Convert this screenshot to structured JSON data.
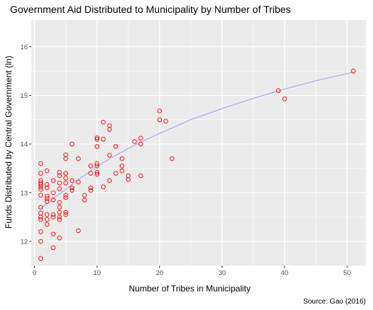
{
  "chart_data": {
    "type": "scatter",
    "title": "Government Aid Distributed to Municipality by Number of Tribes",
    "xlabel": "Number of Tribes in Municipality",
    "ylabel": "Funds Distributed by Central Government (ln)",
    "caption": "Source: Gao (2016)",
    "xlim": [
      -0.5,
      53
    ],
    "ylim": [
      11.5,
      16.55
    ],
    "x_ticks": [
      0,
      10,
      20,
      30,
      40,
      50
    ],
    "y_ticks": [
      12,
      13,
      14,
      15,
      16
    ],
    "x_tick_labels": [
      "0",
      "10",
      "20",
      "30",
      "40",
      "50"
    ],
    "y_tick_labels": [
      "12",
      "13",
      "14",
      "15",
      "16"
    ],
    "grid": true,
    "background": "#ebebeb",
    "point_color": "#ff0000",
    "fit_color": "#aaaaff",
    "points": [
      [
        1,
        11.65
      ],
      [
        1,
        12.0
      ],
      [
        1,
        12.2
      ],
      [
        1,
        12.45
      ],
      [
        1,
        12.5
      ],
      [
        1,
        12.58
      ],
      [
        1,
        12.7
      ],
      [
        1,
        12.95
      ],
      [
        1,
        13.07
      ],
      [
        1,
        13.12
      ],
      [
        1,
        13.17
      ],
      [
        1,
        13.2
      ],
      [
        1,
        13.25
      ],
      [
        1,
        13.4
      ],
      [
        1,
        13.6
      ],
      [
        2,
        12.35
      ],
      [
        2,
        12.45
      ],
      [
        2,
        12.55
      ],
      [
        2,
        12.82
      ],
      [
        2,
        12.88
      ],
      [
        2,
        12.93
      ],
      [
        2,
        13.1
      ],
      [
        2,
        13.17
      ],
      [
        2,
        13.45
      ],
      [
        3,
        11.87
      ],
      [
        3,
        12.15
      ],
      [
        3,
        12.5
      ],
      [
        3,
        12.55
      ],
      [
        3,
        12.85
      ],
      [
        3,
        13.0
      ],
      [
        3,
        13.25
      ],
      [
        4,
        12.07
      ],
      [
        4,
        12.45
      ],
      [
        4,
        12.5
      ],
      [
        4,
        12.6
      ],
      [
        4,
        12.7
      ],
      [
        4,
        12.8
      ],
      [
        4,
        13.08
      ],
      [
        4,
        13.2
      ],
      [
        4,
        13.35
      ],
      [
        4,
        13.42
      ],
      [
        5,
        12.55
      ],
      [
        5,
        12.6
      ],
      [
        5,
        12.9
      ],
      [
        5,
        12.95
      ],
      [
        5,
        13.2
      ],
      [
        5,
        13.3
      ],
      [
        5,
        13.4
      ],
      [
        5,
        13.7
      ],
      [
        5,
        13.78
      ],
      [
        6,
        13.05
      ],
      [
        6,
        13.1
      ],
      [
        6,
        13.25
      ],
      [
        6,
        14.0
      ],
      [
        7,
        12.22
      ],
      [
        7,
        13.22
      ],
      [
        7,
        13.7
      ],
      [
        8,
        12.85
      ],
      [
        8,
        12.95
      ],
      [
        9,
        13.05
      ],
      [
        9,
        13.1
      ],
      [
        9,
        13.4
      ],
      [
        9,
        13.55
      ],
      [
        10,
        13.38
      ],
      [
        10,
        13.42
      ],
      [
        10,
        13.55
      ],
      [
        10,
        13.6
      ],
      [
        10,
        13.95
      ],
      [
        10,
        14.1
      ],
      [
        10,
        14.13
      ],
      [
        11,
        13.12
      ],
      [
        11,
        14.1
      ],
      [
        11,
        14.45
      ],
      [
        12,
        13.25
      ],
      [
        12,
        13.77
      ],
      [
        12,
        14.3
      ],
      [
        12,
        14.38
      ],
      [
        13,
        13.4
      ],
      [
        13,
        13.95
      ],
      [
        14,
        13.45
      ],
      [
        14,
        13.55
      ],
      [
        14,
        13.7
      ],
      [
        15,
        13.27
      ],
      [
        15,
        13.35
      ],
      [
        16,
        14.05
      ],
      [
        17,
        13.35
      ],
      [
        17,
        14.0
      ],
      [
        17,
        14.12
      ],
      [
        20,
        14.5
      ],
      [
        20,
        14.68
      ],
      [
        21,
        14.47
      ],
      [
        22,
        13.7
      ],
      [
        39,
        15.1
      ],
      [
        40,
        14.93
      ],
      [
        51,
        15.5
      ]
    ],
    "fit_line": [
      [
        1,
        12.68
      ],
      [
        3,
        12.88
      ],
      [
        5,
        13.07
      ],
      [
        7,
        13.27
      ],
      [
        9,
        13.45
      ],
      [
        11,
        13.62
      ],
      [
        13,
        13.77
      ],
      [
        15,
        13.91
      ],
      [
        17,
        14.04
      ],
      [
        20,
        14.22
      ],
      [
        25,
        14.5
      ],
      [
        30,
        14.73
      ],
      [
        35,
        14.94
      ],
      [
        40,
        15.13
      ],
      [
        45,
        15.3
      ],
      [
        51,
        15.48
      ]
    ]
  }
}
